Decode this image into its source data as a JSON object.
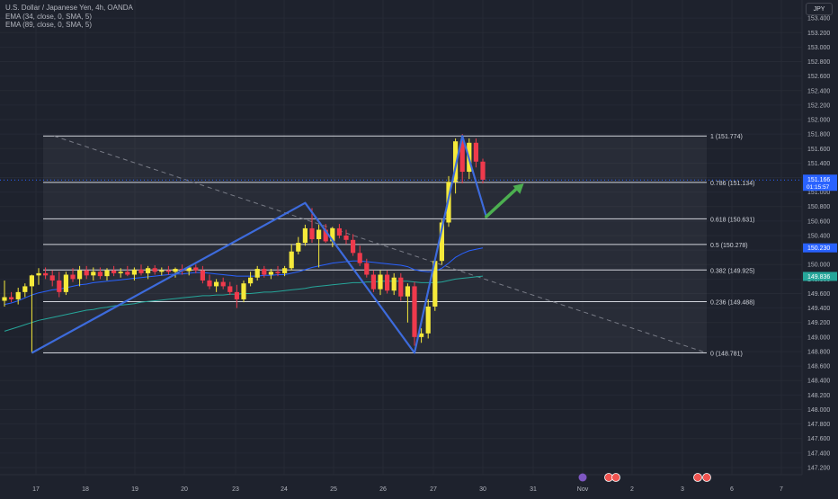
{
  "legend": {
    "symbol": "U.S. Dollar / Japanese Yen, 4h, OANDA",
    "ema1": "EMA (34, close, 0, SMA, 5)",
    "ema2": "EMA (89, close, 0, SMA, 5)"
  },
  "currency_button": "JPY",
  "colors": {
    "background": "#1e222d",
    "bull_candle": "#f5e93a",
    "bear_candle": "#ef3a4c",
    "drawing_line": "#3d6bdc",
    "arrow": "#4caf50",
    "ema34": "#2962ff",
    "ema89": "#26a69a",
    "fib_line": "#d1d4dc"
  },
  "chart_data": {
    "type": "candlestick",
    "symbol": "USDJPY",
    "timeframe": "4h",
    "ylim": [
      147.1,
      153.65
    ],
    "y_ticks": [
      147.2,
      147.4,
      147.6,
      147.8,
      148.0,
      148.2,
      148.4,
      148.6,
      148.8,
      149.0,
      149.2,
      149.4,
      149.6,
      149.8,
      150.0,
      150.2,
      150.4,
      150.6,
      150.8,
      151.0,
      151.2,
      151.4,
      151.6,
      151.8,
      152.0,
      152.2,
      152.4,
      152.6,
      152.8,
      153.0,
      153.2,
      153.4
    ],
    "x_ticks": [
      "17",
      "18",
      "19",
      "20",
      "23",
      "24",
      "25",
      "26",
      "27",
      "30",
      "31",
      "Nov",
      "2",
      "3",
      "6",
      "7"
    ],
    "current_price_label": "151.166",
    "countdown_label": "01:15:57",
    "ema34_label": "150.230",
    "ema89_label": "149.836",
    "fib_levels": [
      {
        "level": "1",
        "price": 151.774
      },
      {
        "level": "0.786",
        "price": 151.134
      },
      {
        "level": "0.618",
        "price": 150.631
      },
      {
        "level": "0.5",
        "price": 150.278
      },
      {
        "level": "0.382",
        "price": 149.925
      },
      {
        "level": "0.236",
        "price": 149.488
      },
      {
        "level": "0",
        "price": 148.781
      }
    ],
    "candles": [
      {
        "o": 149.5,
        "h": 149.78,
        "l": 149.42,
        "c": 149.55
      },
      {
        "o": 149.55,
        "h": 149.62,
        "l": 149.48,
        "c": 149.52
      },
      {
        "o": 149.52,
        "h": 149.68,
        "l": 149.45,
        "c": 149.62
      },
      {
        "o": 149.62,
        "h": 149.74,
        "l": 149.55,
        "c": 149.7
      },
      {
        "o": 149.7,
        "h": 149.86,
        "l": 148.78,
        "c": 149.85
      },
      {
        "o": 149.85,
        "h": 149.95,
        "l": 149.72,
        "c": 149.88
      },
      {
        "o": 149.88,
        "h": 149.96,
        "l": 149.8,
        "c": 149.85
      },
      {
        "o": 149.85,
        "h": 149.92,
        "l": 149.7,
        "c": 149.78
      },
      {
        "o": 149.78,
        "h": 149.9,
        "l": 149.55,
        "c": 149.62
      },
      {
        "o": 149.62,
        "h": 149.9,
        "l": 149.58,
        "c": 149.86
      },
      {
        "o": 149.86,
        "h": 149.95,
        "l": 149.76,
        "c": 149.8
      },
      {
        "o": 149.8,
        "h": 149.98,
        "l": 149.7,
        "c": 149.92
      },
      {
        "o": 149.92,
        "h": 149.98,
        "l": 149.8,
        "c": 149.85
      },
      {
        "o": 149.85,
        "h": 149.96,
        "l": 149.78,
        "c": 149.9
      },
      {
        "o": 149.9,
        "h": 149.96,
        "l": 149.8,
        "c": 149.84
      },
      {
        "o": 149.84,
        "h": 149.95,
        "l": 149.78,
        "c": 149.92
      },
      {
        "o": 149.92,
        "h": 149.98,
        "l": 149.84,
        "c": 149.88
      },
      {
        "o": 149.88,
        "h": 149.95,
        "l": 149.82,
        "c": 149.9
      },
      {
        "o": 149.9,
        "h": 149.98,
        "l": 149.84,
        "c": 149.86
      },
      {
        "o": 149.86,
        "h": 149.96,
        "l": 149.78,
        "c": 149.93
      },
      {
        "o": 149.93,
        "h": 150.0,
        "l": 149.85,
        "c": 149.88
      },
      {
        "o": 149.88,
        "h": 149.98,
        "l": 149.8,
        "c": 149.95
      },
      {
        "o": 149.95,
        "h": 149.99,
        "l": 149.86,
        "c": 149.9
      },
      {
        "o": 149.9,
        "h": 149.96,
        "l": 149.85,
        "c": 149.92
      },
      {
        "o": 149.92,
        "h": 149.98,
        "l": 149.86,
        "c": 149.9
      },
      {
        "o": 149.9,
        "h": 149.96,
        "l": 149.82,
        "c": 149.94
      },
      {
        "o": 149.94,
        "h": 150.0,
        "l": 149.86,
        "c": 149.91
      },
      {
        "o": 149.91,
        "h": 149.98,
        "l": 149.85,
        "c": 149.96
      },
      {
        "o": 149.96,
        "h": 150.0,
        "l": 149.88,
        "c": 149.92
      },
      {
        "o": 149.92,
        "h": 149.98,
        "l": 149.74,
        "c": 149.78
      },
      {
        "o": 149.78,
        "h": 149.86,
        "l": 149.66,
        "c": 149.7
      },
      {
        "o": 149.7,
        "h": 149.8,
        "l": 149.62,
        "c": 149.76
      },
      {
        "o": 149.76,
        "h": 149.82,
        "l": 149.66,
        "c": 149.7
      },
      {
        "o": 149.7,
        "h": 149.76,
        "l": 149.58,
        "c": 149.62
      },
      {
        "o": 149.62,
        "h": 149.72,
        "l": 149.4,
        "c": 149.52
      },
      {
        "o": 149.52,
        "h": 149.78,
        "l": 149.48,
        "c": 149.74
      },
      {
        "o": 149.74,
        "h": 149.9,
        "l": 149.7,
        "c": 149.82
      },
      {
        "o": 149.82,
        "h": 149.98,
        "l": 149.78,
        "c": 149.94
      },
      {
        "o": 149.94,
        "h": 149.98,
        "l": 149.82,
        "c": 149.86
      },
      {
        "o": 149.86,
        "h": 149.94,
        "l": 149.8,
        "c": 149.9
      },
      {
        "o": 149.9,
        "h": 149.98,
        "l": 149.84,
        "c": 149.88
      },
      {
        "o": 149.88,
        "h": 149.98,
        "l": 149.84,
        "c": 149.95
      },
      {
        "o": 149.95,
        "h": 150.28,
        "l": 149.92,
        "c": 150.18
      },
      {
        "o": 150.18,
        "h": 150.38,
        "l": 150.14,
        "c": 150.3
      },
      {
        "o": 150.3,
        "h": 150.55,
        "l": 150.26,
        "c": 150.5
      },
      {
        "o": 150.5,
        "h": 150.78,
        "l": 150.3,
        "c": 150.35
      },
      {
        "o": 150.35,
        "h": 150.55,
        "l": 149.96,
        "c": 150.48
      },
      {
        "o": 150.48,
        "h": 150.56,
        "l": 150.3,
        "c": 150.32
      },
      {
        "o": 150.32,
        "h": 150.52,
        "l": 150.24,
        "c": 150.5
      },
      {
        "o": 150.5,
        "h": 150.56,
        "l": 150.36,
        "c": 150.4
      },
      {
        "o": 150.4,
        "h": 150.48,
        "l": 150.28,
        "c": 150.34
      },
      {
        "o": 150.34,
        "h": 150.42,
        "l": 150.12,
        "c": 150.16
      },
      {
        "o": 150.16,
        "h": 150.26,
        "l": 149.98,
        "c": 150.02
      },
      {
        "o": 150.02,
        "h": 150.08,
        "l": 149.82,
        "c": 149.86
      },
      {
        "o": 149.86,
        "h": 149.92,
        "l": 149.62,
        "c": 149.66
      },
      {
        "o": 149.66,
        "h": 149.92,
        "l": 149.58,
        "c": 149.86
      },
      {
        "o": 149.86,
        "h": 149.92,
        "l": 149.6,
        "c": 149.64
      },
      {
        "o": 149.64,
        "h": 149.88,
        "l": 149.58,
        "c": 149.82
      },
      {
        "o": 149.82,
        "h": 149.88,
        "l": 149.5,
        "c": 149.56
      },
      {
        "o": 149.56,
        "h": 149.74,
        "l": 149.2,
        "c": 149.7
      },
      {
        "o": 149.7,
        "h": 149.76,
        "l": 148.88,
        "c": 149.0
      },
      {
        "o": 149.0,
        "h": 149.12,
        "l": 148.92,
        "c": 149.05
      },
      {
        "o": 149.05,
        "h": 149.52,
        "l": 148.98,
        "c": 149.42
      },
      {
        "o": 149.42,
        "h": 150.08,
        "l": 149.36,
        "c": 150.05
      },
      {
        "o": 150.05,
        "h": 150.62,
        "l": 150.0,
        "c": 150.58
      },
      {
        "o": 150.58,
        "h": 151.22,
        "l": 150.52,
        "c": 151.14
      },
      {
        "o": 151.14,
        "h": 151.74,
        "l": 150.98,
        "c": 151.7
      },
      {
        "o": 151.7,
        "h": 151.8,
        "l": 151.12,
        "c": 151.28
      },
      {
        "o": 151.28,
        "h": 151.74,
        "l": 151.18,
        "c": 151.68
      },
      {
        "o": 151.68,
        "h": 151.74,
        "l": 151.34,
        "c": 151.42
      },
      {
        "o": 151.42,
        "h": 151.46,
        "l": 151.12,
        "c": 151.17
      }
    ],
    "ema34": [
      149.45,
      149.47,
      149.5,
      149.54,
      149.58,
      149.61,
      149.63,
      149.65,
      149.66,
      149.68,
      149.7,
      149.72,
      149.73,
      149.75,
      149.76,
      149.77,
      149.78,
      149.79,
      149.8,
      149.81,
      149.82,
      149.83,
      149.84,
      149.85,
      149.86,
      149.87,
      149.87,
      149.88,
      149.89,
      149.89,
      149.88,
      149.87,
      149.86,
      149.85,
      149.84,
      149.84,
      149.84,
      149.84,
      149.85,
      149.85,
      149.86,
      149.86,
      149.88,
      149.9,
      149.93,
      149.96,
      149.98,
      150.0,
      150.02,
      150.03,
      150.04,
      150.05,
      150.05,
      150.04,
      150.03,
      150.02,
      150.01,
      150.0,
      149.99,
      149.97,
      149.93,
      149.91,
      149.9,
      149.91,
      149.95,
      150.02,
      150.1,
      150.15,
      150.19,
      150.21,
      150.23
    ],
    "ema89": [
      149.08,
      149.11,
      149.14,
      149.17,
      149.2,
      149.23,
      149.25,
      149.27,
      149.29,
      149.31,
      149.33,
      149.35,
      149.37,
      149.38,
      149.4,
      149.41,
      149.43,
      149.44,
      149.45,
      149.46,
      149.48,
      149.49,
      149.5,
      149.51,
      149.52,
      149.53,
      149.54,
      149.55,
      149.56,
      149.57,
      149.57,
      149.58,
      149.58,
      149.59,
      149.59,
      149.6,
      149.6,
      149.61,
      149.62,
      149.62,
      149.63,
      149.64,
      149.65,
      149.66,
      149.67,
      149.69,
      149.7,
      149.71,
      149.72,
      149.73,
      149.74,
      149.75,
      149.75,
      149.76,
      149.76,
      149.77,
      149.77,
      149.77,
      149.77,
      149.77,
      149.76,
      149.75,
      149.75,
      149.75,
      149.76,
      149.78,
      149.8,
      149.81,
      149.82,
      149.83,
      149.84
    ],
    "projection_path": [
      {
        "candle": 4,
        "price": 148.781
      },
      {
        "candle": 44,
        "price": 150.85
      },
      {
        "candle": 60,
        "price": 148.781
      },
      {
        "candle": 67,
        "price": 151.774
      },
      {
        "candle": 70.5,
        "price": 150.66
      }
    ],
    "projection_arrow": [
      {
        "candle": 70.5,
        "price": 150.66
      },
      {
        "candle": 76,
        "price": 151.12
      }
    ]
  }
}
